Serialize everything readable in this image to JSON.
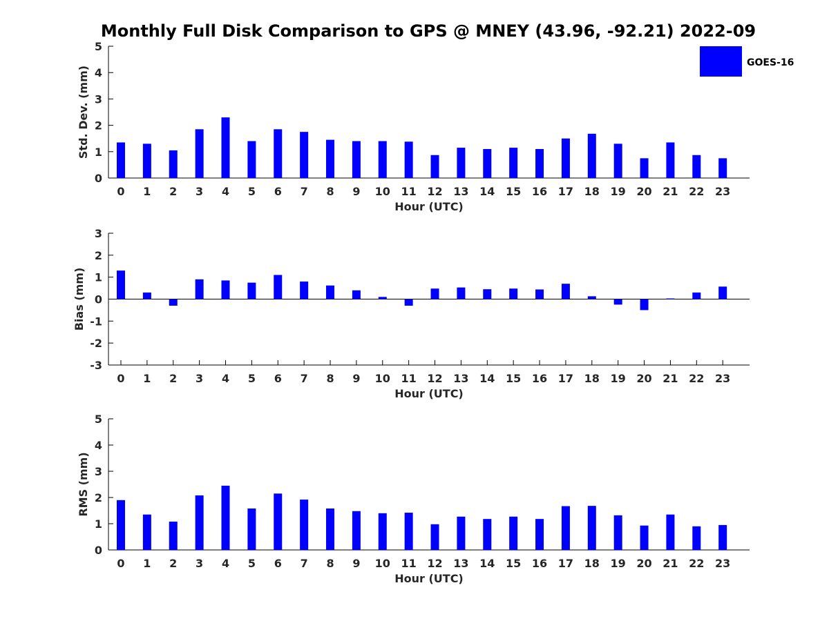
{
  "figure": {
    "title": "Monthly Full Disk Comparison to GPS @ MNEY (43.96, -92.21) 2022-09",
    "series_color": "#0000ff",
    "legend_label": "GOES-16"
  },
  "chart_data": [
    {
      "type": "bar",
      "title": "Monthly Full Disk Comparison to GPS @ MNEY (43.96, -92.21) 2022-09",
      "xlabel": "Hour (UTC)",
      "ylabel": "Std. Dev. (mm)",
      "ylim": [
        0,
        5
      ],
      "yticks": [
        "0",
        "1",
        "2",
        "3",
        "4",
        "5"
      ],
      "categories": [
        "0",
        "1",
        "2",
        "3",
        "4",
        "5",
        "6",
        "7",
        "8",
        "9",
        "10",
        "11",
        "12",
        "13",
        "14",
        "15",
        "16",
        "17",
        "18",
        "19",
        "20",
        "21",
        "22",
        "23"
      ],
      "legend": [
        "GOES-16"
      ],
      "legend_position": "top-right",
      "series": [
        {
          "name": "GOES-16",
          "values": [
            1.35,
            1.3,
            1.05,
            1.85,
            2.3,
            1.4,
            1.85,
            1.75,
            1.45,
            1.4,
            1.4,
            1.38,
            0.87,
            1.15,
            1.1,
            1.15,
            1.1,
            1.5,
            1.68,
            1.3,
            0.75,
            1.35,
            0.87,
            0.75
          ]
        }
      ]
    },
    {
      "type": "bar",
      "title": "",
      "xlabel": "Hour (UTC)",
      "ylabel": "Bias (mm)",
      "ylim": [
        -3,
        3
      ],
      "yticks": [
        "-3",
        "-2",
        "-1",
        "0",
        "1",
        "2",
        "3"
      ],
      "categories": [
        "0",
        "1",
        "2",
        "3",
        "4",
        "5",
        "6",
        "7",
        "8",
        "9",
        "10",
        "11",
        "12",
        "13",
        "14",
        "15",
        "16",
        "17",
        "18",
        "19",
        "20",
        "21",
        "22",
        "23"
      ],
      "series": [
        {
          "name": "GOES-16",
          "values": [
            1.3,
            0.3,
            -0.3,
            0.9,
            0.85,
            0.75,
            1.1,
            0.8,
            0.62,
            0.4,
            0.1,
            -0.3,
            0.48,
            0.53,
            0.45,
            0.48,
            0.44,
            0.7,
            0.13,
            -0.25,
            -0.5,
            0.03,
            0.3,
            0.57
          ]
        }
      ]
    },
    {
      "type": "bar",
      "title": "",
      "xlabel": "Hour (UTC)",
      "ylabel": "RMS (mm)",
      "ylim": [
        0,
        5
      ],
      "yticks": [
        "0",
        "1",
        "2",
        "3",
        "4",
        "5"
      ],
      "categories": [
        "0",
        "1",
        "2",
        "3",
        "4",
        "5",
        "6",
        "7",
        "8",
        "9",
        "10",
        "11",
        "12",
        "13",
        "14",
        "15",
        "16",
        "17",
        "18",
        "19",
        "20",
        "21",
        "22",
        "23"
      ],
      "series": [
        {
          "name": "GOES-16",
          "values": [
            1.9,
            1.35,
            1.08,
            2.08,
            2.45,
            1.58,
            2.15,
            1.92,
            1.58,
            1.48,
            1.4,
            1.42,
            0.98,
            1.27,
            1.18,
            1.27,
            1.18,
            1.67,
            1.68,
            1.32,
            0.93,
            1.35,
            0.9,
            0.95
          ]
        }
      ]
    }
  ]
}
